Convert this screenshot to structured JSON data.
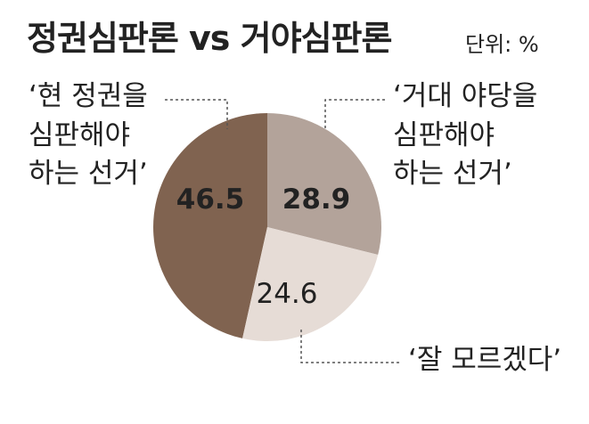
{
  "title": "정권심판론 vs 거야심판론",
  "unit": "단위: %",
  "colors": {
    "slice_1": "#806350",
    "slice_2": "#b3a39a",
    "slice_3": "#e6dcd6",
    "value_on_dark": "#ffffff",
    "value_on_light": "#111111",
    "leader": "#555555"
  },
  "chart_data": {
    "type": "pie",
    "title": "정권심판론 vs 거야심판론",
    "unit": "단위: %",
    "slices": [
      {
        "label": "‘현 정권을 심판해야 하는 선거’",
        "label_lines": [
          "‘현 정권을",
          "심판해야",
          "하는 선거’"
        ],
        "value": 46.5,
        "value_text": "46.5"
      },
      {
        "label": "‘거대 야당을 심판해야 하는 선거’",
        "label_lines": [
          "‘거대 야당을",
          "심판해야",
          "하는 선거’"
        ],
        "value": 28.9,
        "value_text": "28.9"
      },
      {
        "label": "‘잘 모르겠다’",
        "label_lines": [
          "‘잘 모르겠다’"
        ],
        "value": 24.6,
        "value_text": "24.6"
      }
    ]
  }
}
